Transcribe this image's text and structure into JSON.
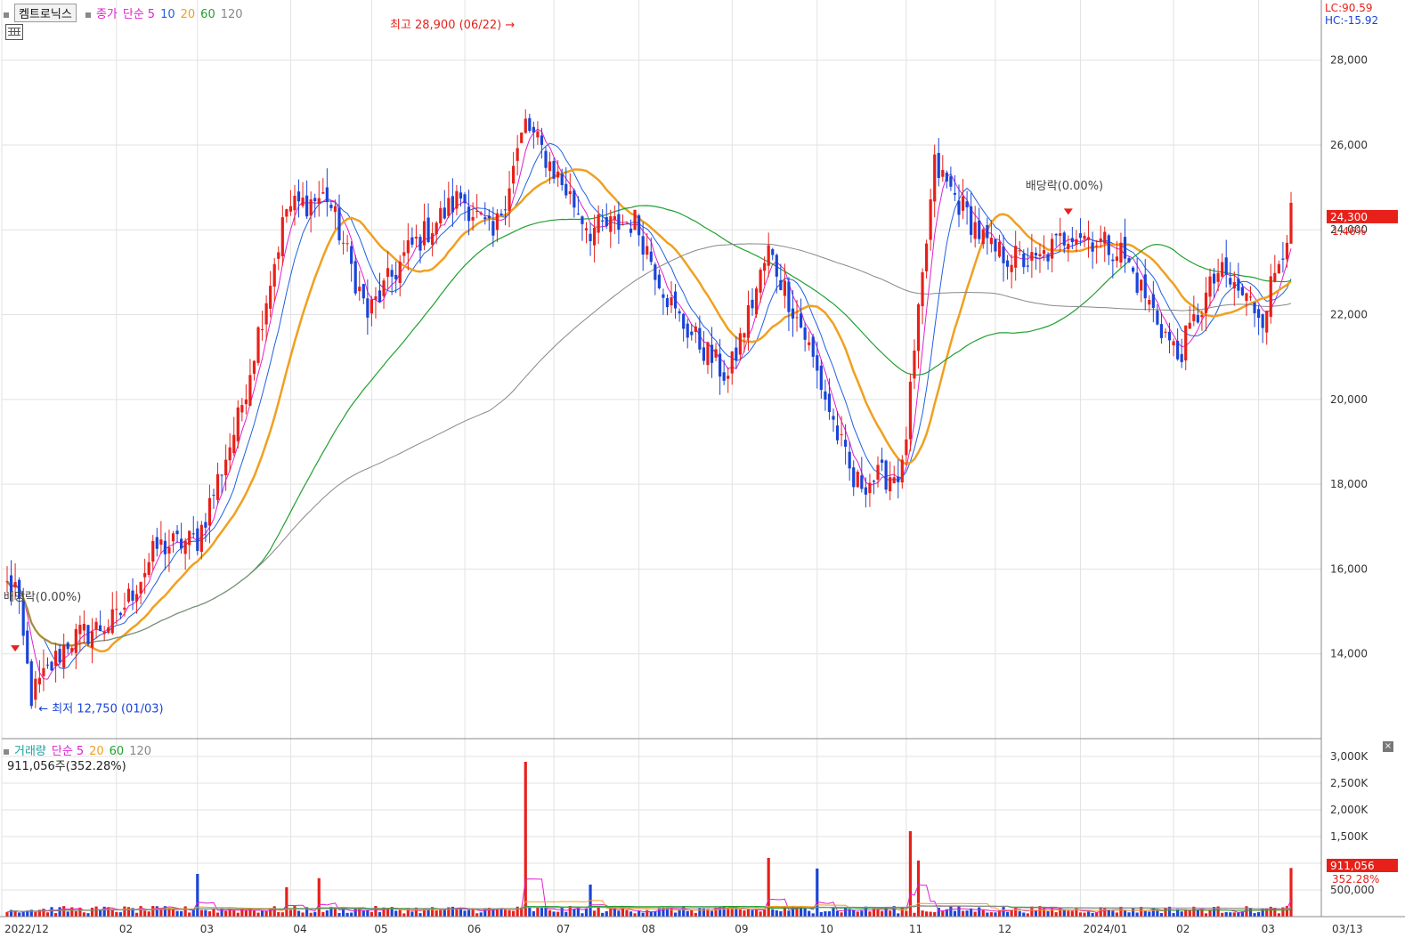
{
  "header": {
    "stock_name": "켐트로닉스",
    "price_label": "종가",
    "ma_type": "단순",
    "ma_periods": [
      "5",
      "10",
      "20",
      "60",
      "120"
    ]
  },
  "volume_header": {
    "label": "거래량",
    "ma_type": "단순",
    "ma_periods": [
      "5",
      "20",
      "60",
      "120"
    ],
    "last_text": "911,056주(352.28%)"
  },
  "lc": "LC:90.59",
  "hc": "HC:-15.92",
  "colors": {
    "up": "#e8201a",
    "down": "#1a44d8",
    "ma5": "#e020d0",
    "ma10": "#2060e0",
    "ma20": "#f0a020",
    "ma60": "#20a030",
    "ma120": "#888888",
    "grid": "#e2e2e2"
  },
  "icons": {
    "table": "table-grid-icon",
    "close": "close-x-icon"
  },
  "chart_data": [
    {
      "type": "candlestick",
      "ylim": [
        12000,
        29000
      ],
      "y_ticks": [
        "28,000",
        "26,000",
        "24,000",
        "22,000",
        "20,000",
        "18,000",
        "16,000",
        "14,000"
      ],
      "y_tick_values": [
        28000,
        26000,
        24000,
        22000,
        20000,
        18000,
        16000,
        14000
      ],
      "x_labels": [
        "2022/12",
        "02",
        "03",
        "04",
        "05",
        "06",
        "07",
        "08",
        "09",
        "10",
        "11",
        "12",
        "2024/01",
        "02",
        "03",
        "03/13"
      ],
      "last_price": "24,300",
      "last_change": "1.46%",
      "high_annotation": "최고 28,900 (06/22)",
      "low_annotation": "최저 12,750 (01/03)",
      "dividend_annotations": [
        "배당락(0.00%)",
        "배당락(0.00%)"
      ],
      "close_waypoints": [
        {
          "date": "2022-12-28",
          "close": 15600
        },
        {
          "date": "2023-01-03",
          "close": 13000
        },
        {
          "date": "2023-01-16",
          "close": 14300
        },
        {
          "date": "2023-02-01",
          "close": 14800
        },
        {
          "date": "2023-02-15",
          "close": 16500
        },
        {
          "date": "2023-03-01",
          "close": 16700
        },
        {
          "date": "2023-03-15",
          "close": 19500
        },
        {
          "date": "2023-03-31",
          "close": 24500
        },
        {
          "date": "2023-04-14",
          "close": 24800
        },
        {
          "date": "2023-04-28",
          "close": 22000
        },
        {
          "date": "2023-05-12",
          "close": 23500
        },
        {
          "date": "2023-05-31",
          "close": 24800
        },
        {
          "date": "2023-06-12",
          "close": 23800
        },
        {
          "date": "2023-06-22",
          "close": 26500
        },
        {
          "date": "2023-07-14",
          "close": 24000
        },
        {
          "date": "2023-07-31",
          "close": 24200
        },
        {
          "date": "2023-08-14",
          "close": 22000
        },
        {
          "date": "2023-08-31",
          "close": 20500
        },
        {
          "date": "2023-09-14",
          "close": 23500
        },
        {
          "date": "2023-09-27",
          "close": 21500
        },
        {
          "date": "2023-10-13",
          "close": 18000
        },
        {
          "date": "2023-10-31",
          "close": 18300
        },
        {
          "date": "2023-11-10",
          "close": 25500
        },
        {
          "date": "2023-11-30",
          "close": 23500
        },
        {
          "date": "2023-12-15",
          "close": 23200
        },
        {
          "date": "2023-12-28",
          "close": 24000
        },
        {
          "date": "2024-01-15",
          "close": 23500
        },
        {
          "date": "2024-02-02",
          "close": 21000
        },
        {
          "date": "2024-02-16",
          "close": 23000
        },
        {
          "date": "2024-03-04",
          "close": 22000
        },
        {
          "date": "2024-03-13",
          "close": 24300
        }
      ],
      "ma_series": [
        {
          "name": "5",
          "window": 5
        },
        {
          "name": "10",
          "window": 10
        },
        {
          "name": "20",
          "window": 20
        },
        {
          "name": "60",
          "window": 60
        },
        {
          "name": "120",
          "window": 120
        }
      ]
    },
    {
      "type": "bar",
      "ylim": [
        0,
        3000
      ],
      "y_ticks": [
        "3,000K",
        "2,500K",
        "2,000K",
        "1,500K",
        "1,000K",
        "500,000"
      ],
      "y_tick_values": [
        3000,
        2500,
        2000,
        1500,
        1000,
        500
      ],
      "unit": "K",
      "last_volume": "911,056",
      "last_ratio": "352.28%",
      "spikes": [
        {
          "date": "2023-03-01",
          "volume": 800
        },
        {
          "date": "2023-03-31",
          "volume": 550
        },
        {
          "date": "2023-04-12",
          "volume": 720
        },
        {
          "date": "2023-06-22",
          "volume": 2900
        },
        {
          "date": "2023-07-14",
          "volume": 600
        },
        {
          "date": "2023-09-14",
          "volume": 1100
        },
        {
          "date": "2023-10-02",
          "volume": 900
        },
        {
          "date": "2023-11-02",
          "volume": 1600
        },
        {
          "date": "2023-11-06",
          "volume": 1050
        },
        {
          "date": "2024-03-13",
          "volume": 911
        }
      ]
    }
  ]
}
